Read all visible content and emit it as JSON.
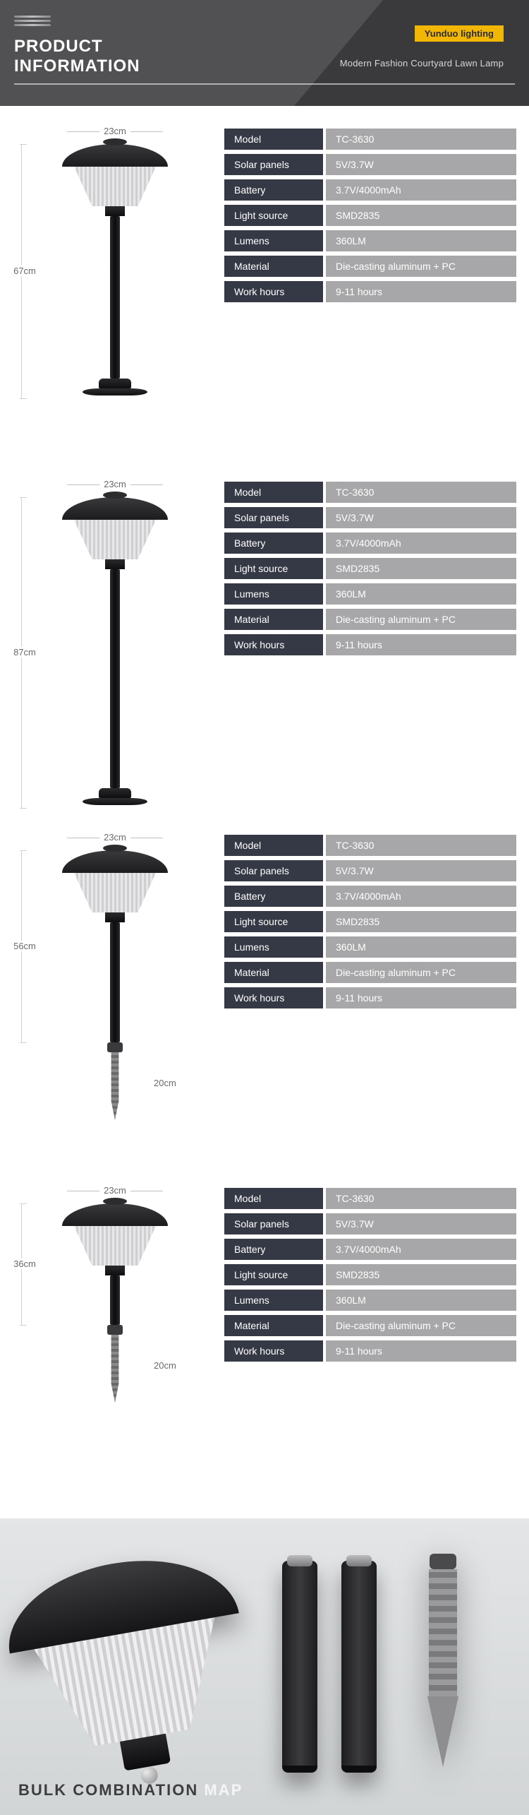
{
  "header": {
    "title_line1": "PRODUCT",
    "title_line2": "INFORMATION",
    "brand": "Yunduo lighting",
    "subtitle": "Modern Fashion Courtyard Lawn Lamp"
  },
  "colors": {
    "label_dark": "#343945",
    "value_grey": "#a7a7a9",
    "brand_yellow": "#f2b705",
    "header_grad_a": "#515154",
    "header_grad_b": "#3a3a3c"
  },
  "spec_labels": [
    "Model",
    "Solar panels",
    "Battery",
    "Light source",
    "Lumens",
    "Material",
    "Work hours"
  ],
  "products": [
    {
      "dims": {
        "top": "23cm",
        "height": "67cm",
        "spike": null
      },
      "specs": [
        "TC-3630",
        "5V/3.7W",
        "3.7V/4000mAh",
        "SMD2835",
        "360LM",
        "Die-casting aluminum + PC",
        "9-11 hours"
      ],
      "figure": {
        "type": "pole_base",
        "pole_height": 230
      }
    },
    {
      "dims": {
        "top": "23cm",
        "height": "87cm",
        "spike": null
      },
      "specs": [
        "TC-3630",
        "5V/3.7W",
        "3.7V/4000mAh",
        "SMD2835",
        "360LM",
        "Die-casting aluminum + PC",
        "9-11 hours"
      ],
      "figure": {
        "type": "pole_base",
        "pole_height": 310
      }
    },
    {
      "dims": {
        "top": "23cm",
        "height": "56cm",
        "spike": "20cm"
      },
      "specs": [
        "TC-3630",
        "5V/3.7W",
        "3.7V/4000mAh",
        "SMD2835",
        "360LM",
        "Die-casting aluminum + PC",
        "9-11 hours"
      ],
      "figure": {
        "type": "pole_spike",
        "pole_height": 170
      }
    },
    {
      "dims": {
        "top": "23cm",
        "height": "36cm",
        "spike": "20cm"
      },
      "specs": [
        "TC-3630",
        "5V/3.7W",
        "3.7V/4000mAh",
        "SMD2835",
        "360LM",
        "Die-casting aluminum + PC",
        "9-11 hours"
      ],
      "figure": {
        "type": "spike_only",
        "pole_height": 70
      }
    }
  ],
  "footer": {
    "title_visible": "BULK COMBINATION ",
    "title_watermark": "MAP"
  }
}
